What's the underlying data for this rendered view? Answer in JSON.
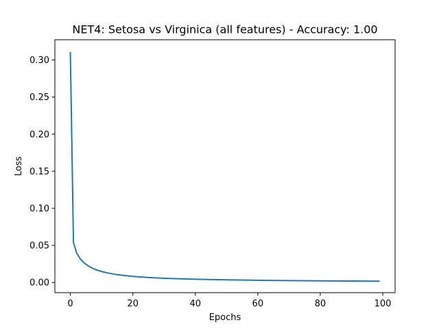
{
  "chart_data": {
    "type": "line",
    "title": "NET4: Setosa vs Virginica (all features) - Accuracy: 1.00",
    "xlabel": "Epochs",
    "ylabel": "Loss",
    "xlim": [
      -4.95,
      103.95
    ],
    "ylim": [
      -0.0137,
      0.3273
    ],
    "xticks": [
      0,
      20,
      40,
      60,
      80,
      100
    ],
    "xtick_labels": [
      "0",
      "20",
      "40",
      "60",
      "80",
      "100"
    ],
    "yticks": [
      0.0,
      0.05,
      0.1,
      0.15,
      0.2,
      0.25,
      0.3
    ],
    "ytick_labels": [
      "0.00",
      "0.05",
      "0.10",
      "0.15",
      "0.20",
      "0.25",
      "0.30"
    ],
    "grid": false,
    "line_color": "#1f77b4",
    "series": [
      {
        "x": [
          0,
          1,
          2,
          3,
          4,
          5,
          6,
          7,
          8,
          10,
          12,
          15,
          20,
          25,
          30,
          40,
          50,
          60,
          70,
          80,
          90,
          99
        ],
        "values": [
          0.311,
          0.054,
          0.04,
          0.033,
          0.028,
          0.0245,
          0.0218,
          0.0195,
          0.0176,
          0.0148,
          0.0128,
          0.0106,
          0.0082,
          0.0067,
          0.0057,
          0.0044,
          0.0036,
          0.003,
          0.0026,
          0.0023,
          0.002,
          0.0018
        ]
      }
    ]
  }
}
